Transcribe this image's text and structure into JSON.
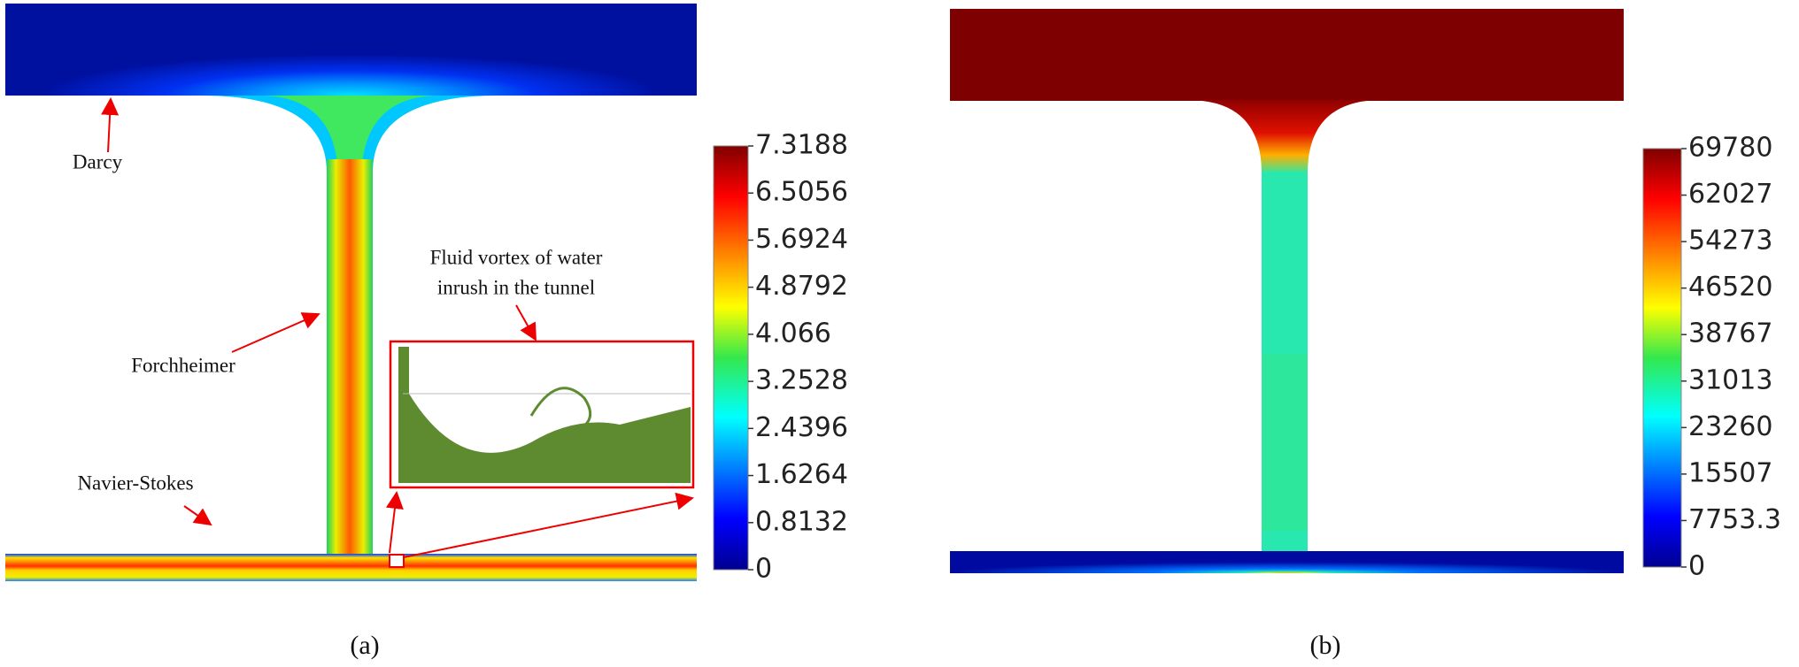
{
  "panels": [
    {
      "label": "(a)",
      "colorbar": {
        "ticks": [
          "7.3188",
          "6.5056",
          "5.6924",
          "4.8792",
          "4.066",
          "3.2528",
          "2.4396",
          "1.6264",
          "0.8132",
          "0"
        ]
      },
      "annotations": {
        "darcy": "Darcy",
        "forchheimer": "Forchheimer",
        "navier_stokes": "Navier-Stokes",
        "vortex": [
          "Fluid vortex of water",
          "inrush in the tunnel"
        ]
      }
    },
    {
      "label": "(b)",
      "colorbar": {
        "ticks": [
          "69780",
          "62027",
          "54273",
          "46520",
          "38767",
          "31013",
          "23260",
          "15507",
          "7753.3",
          "0"
        ]
      }
    }
  ]
}
